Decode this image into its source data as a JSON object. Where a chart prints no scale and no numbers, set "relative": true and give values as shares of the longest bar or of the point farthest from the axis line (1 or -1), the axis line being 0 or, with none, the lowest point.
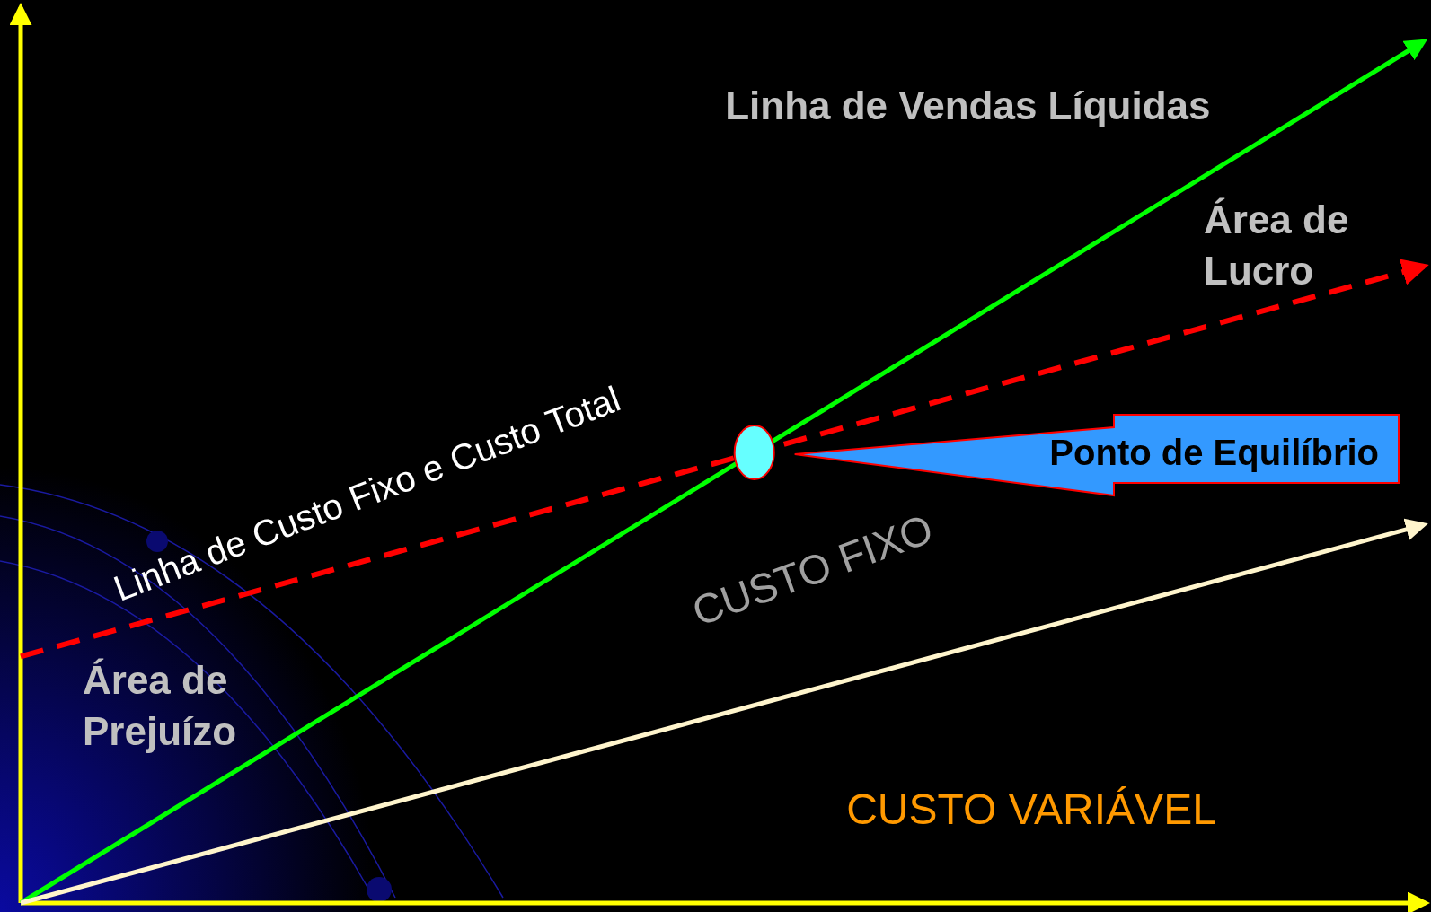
{
  "chart_data": {
    "type": "line",
    "relative": true,
    "categories": [
      null,
      null
    ],
    "legend": false,
    "marker": "none",
    "series": [
      {
        "name": "Linha de Vendas Líquidas",
        "color": "#00ff00",
        "values": [
          0,
          1
        ],
        "line_style": "solid"
      },
      {
        "name": "Linha de Custo Fixo e Custo Total",
        "color": "#ff0000",
        "values": [
          0.286,
          0.739
        ],
        "line_style": "dashed"
      },
      {
        "color": "#fff5cc",
        "values": [
          0,
          0.439
        ],
        "line_style": "solid"
      }
    ],
    "annotations": [
      "Área de Lucro",
      "Área de Prejuízo",
      "CUSTO FIXO",
      "CUSTO VARIÁVEL",
      "Ponto de Equilíbrio"
    ]
  }
}
